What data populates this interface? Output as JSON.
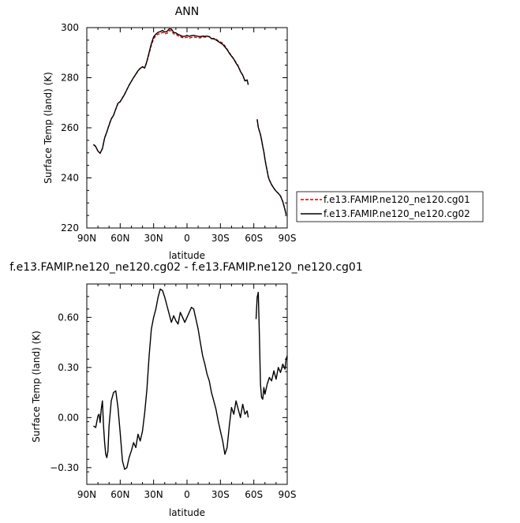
{
  "chart_data": [
    {
      "type": "line",
      "title": "ANN",
      "xlabel": "latitude",
      "ylabel": "Surface Temp (land) (K)",
      "xlim": [
        90,
        -90
      ],
      "ylim": [
        220,
        300
      ],
      "x_ticks": [
        {
          "value": 90,
          "label": "90N"
        },
        {
          "value": 60,
          "label": "60N"
        },
        {
          "value": 30,
          "label": "30N"
        },
        {
          "value": 0,
          "label": "0"
        },
        {
          "value": -30,
          "label": "30S"
        },
        {
          "value": -60,
          "label": "60S"
        },
        {
          "value": -90,
          "label": "90S"
        }
      ],
      "y_ticks": [
        {
          "value": 220,
          "label": "220"
        },
        {
          "value": 240,
          "label": "240"
        },
        {
          "value": 260,
          "label": "260"
        },
        {
          "value": 280,
          "label": "280"
        },
        {
          "value": 300,
          "label": "300"
        }
      ],
      "legend": {
        "position": "right"
      },
      "series": [
        {
          "name": "f.e13.FAMIP.ne120_ne120.cg01",
          "color": "#cc0000",
          "dash": "dashed",
          "segments": [
            {
              "x": [
                84,
                82,
                80,
                78,
                76,
                74,
                72,
                70,
                68,
                66,
                64,
                62,
                60,
                56,
                52,
                48,
                44,
                42,
                40,
                38,
                36,
                34,
                32,
                30,
                28,
                26,
                24,
                22,
                20,
                18,
                16,
                14,
                12,
                10,
                8,
                6,
                4,
                2,
                0,
                -2,
                -4,
                -6,
                -8,
                -10,
                -12,
                -14,
                -16,
                -18,
                -20,
                -22,
                -24,
                -26,
                -28,
                -30,
                -32,
                -34,
                -36,
                -38,
                -40,
                -42,
                -44,
                -46,
                -48,
                -50,
                -52,
                -54,
                -55
              ],
              "y": [
                253.4,
                252.6,
                250.6,
                249.8,
                251.8,
                256.1,
                258.3,
                261.3,
                263.6,
                265.1,
                267.4,
                269.7,
                270.5,
                273.5,
                277.1,
                280.0,
                282.6,
                283.8,
                284.2,
                283.9,
                286.4,
                289.7,
                292.9,
                295.6,
                296.7,
                297.4,
                297.6,
                298.1,
                297.5,
                297.7,
                298.8,
                298.7,
                297.5,
                297.4,
                296.7,
                296.3,
                296.0,
                295.9,
                296.2,
                295.8,
                296.1,
                296.3,
                296.1,
                296.0,
                295.9,
                296.3,
                296.2,
                296.4,
                296.4,
                295.6,
                295.7,
                295.5,
                294.7,
                294.3,
                293.8,
                292.7,
                291.4,
                290.0,
                288.8,
                287.5,
                286.1,
                284.7,
                282.6,
                281.0,
                278.8,
                279.1,
                277.2
              ]
            },
            {
              "x": [
                -63,
                -64,
                -65,
                -66,
                -67,
                -68,
                -69,
                -70,
                -71,
                -72,
                -73,
                -74,
                -76,
                -78,
                -80,
                -82,
                -84,
                -86,
                -88,
                -89
              ],
              "y": [
                263.3,
                260.2,
                258.8,
                257.2,
                255.1,
                252.6,
                250.3,
                247.4,
                244.9,
                242.9,
                240.4,
                239.2,
                237.3,
                235.9,
                234.6,
                233.9,
                232.7,
                230.6,
                227.3,
                225.4
              ]
            }
          ]
        },
        {
          "name": "f.e13.FAMIP.ne120_ne120.cg02",
          "color": "#000000",
          "dash": "solid",
          "segments": [
            {
              "x": [
                84,
                82,
                80,
                78,
                76,
                74,
                72,
                70,
                68,
                66,
                64,
                62,
                60,
                56,
                52,
                48,
                44,
                42,
                40,
                38,
                36,
                34,
                32,
                30,
                28,
                26,
                24,
                22,
                20,
                18,
                16,
                14,
                12,
                10,
                8,
                6,
                4,
                2,
                0,
                -2,
                -4,
                -6,
                -8,
                -10,
                -12,
                -14,
                -16,
                -18,
                -20,
                -22,
                -24,
                -26,
                -28,
                -30,
                -32,
                -34,
                -36,
                -38,
                -40,
                -42,
                -44,
                -46,
                -48,
                -50,
                -52,
                -54,
                -55
              ],
              "y": [
                253.3,
                252.5,
                250.7,
                249.9,
                251.7,
                255.9,
                258.4,
                261.0,
                263.5,
                265.0,
                267.5,
                269.8,
                270.4,
                273.4,
                277.0,
                280.1,
                282.8,
                283.7,
                284.4,
                283.9,
                286.6,
                290.1,
                293.6,
                296.3,
                297.4,
                298.1,
                298.4,
                298.9,
                298.2,
                298.5,
                299.5,
                299.4,
                298.1,
                297.9,
                297.3,
                296.9,
                296.5,
                296.5,
                296.9,
                296.5,
                296.8,
                296.9,
                296.7,
                296.5,
                296.4,
                296.6,
                296.5,
                296.6,
                296.4,
                295.6,
                295.5,
                295.1,
                294.5,
                293.9,
                293.3,
                292.3,
                291.2,
                289.8,
                288.6,
                287.4,
                285.8,
                284.5,
                282.5,
                281.0,
                278.7,
                279.1,
                277.2
              ]
            },
            {
              "x": [
                -63,
                -64,
                -65,
                -66,
                -67,
                -68,
                -69,
                -70,
                -71,
                -72,
                -73,
                -74,
                -76,
                -78,
                -80,
                -82,
                -84,
                -86,
                -88,
                -89
              ],
              "y": [
                263.4,
                260.3,
                258.7,
                257.3,
                255.2,
                252.5,
                250.4,
                247.5,
                245.0,
                242.8,
                240.5,
                239.1,
                237.3,
                235.8,
                234.7,
                233.8,
                232.8,
                230.5,
                227.2,
                225.4
              ]
            }
          ]
        }
      ]
    },
    {
      "type": "line",
      "title": "f.e13.FAMIP.ne120_ne120.cg02 - f.e13.FAMIP.ne120_ne120.cg01",
      "xlabel": "latitude",
      "ylabel": "Surface Temp (land) (K)",
      "xlim": [
        90,
        -90
      ],
      "ylim": [
        -0.4,
        0.8
      ],
      "x_ticks": [
        {
          "value": 90,
          "label": "90N"
        },
        {
          "value": 60,
          "label": "60N"
        },
        {
          "value": 30,
          "label": "30N"
        },
        {
          "value": 0,
          "label": "0"
        },
        {
          "value": -30,
          "label": "30S"
        },
        {
          "value": -60,
          "label": "60S"
        },
        {
          "value": -90,
          "label": "90S"
        }
      ],
      "y_ticks": [
        {
          "value": -0.3,
          "label": "−0.30"
        },
        {
          "value": 0.0,
          "label": "0.00"
        },
        {
          "value": 0.3,
          "label": "0.30"
        },
        {
          "value": 0.6,
          "label": "0.60"
        }
      ],
      "series": [
        {
          "color": "#000000",
          "dash": "solid",
          "segments": [
            {
              "x": [
                84,
                82,
                80,
                79,
                78,
                77,
                76,
                75,
                74,
                73,
                72,
                71,
                70,
                68,
                66,
                64,
                62,
                60,
                58,
                56,
                54,
                52,
                50,
                48,
                46,
                44,
                42,
                40,
                38,
                36,
                34,
                32,
                30,
                28,
                26,
                24,
                22,
                20,
                18,
                16,
                14,
                12,
                10,
                8,
                6,
                4,
                2,
                0,
                -2,
                -4,
                -6,
                -8,
                -10,
                -12,
                -14,
                -16,
                -18,
                -20,
                -22,
                -24,
                -26,
                -28,
                -30,
                -32,
                -34,
                -36,
                -38,
                -40,
                -42,
                -44,
                -46,
                -48,
                -50,
                -52,
                -54,
                -55
              ],
              "y": [
                -0.05,
                -0.06,
                0.01,
                0.02,
                -0.03,
                0.05,
                0.1,
                -0.05,
                -0.15,
                -0.22,
                -0.24,
                -0.2,
                -0.05,
                0.1,
                0.15,
                0.16,
                0.06,
                -0.09,
                -0.26,
                -0.31,
                -0.3,
                -0.24,
                -0.2,
                -0.15,
                -0.18,
                -0.1,
                -0.14,
                -0.08,
                0.03,
                0.17,
                0.37,
                0.53,
                0.6,
                0.65,
                0.72,
                0.77,
                0.76,
                0.72,
                0.67,
                0.62,
                0.57,
                0.61,
                0.58,
                0.56,
                0.63,
                0.6,
                0.57,
                0.6,
                0.63,
                0.66,
                0.65,
                0.59,
                0.53,
                0.45,
                0.37,
                0.32,
                0.26,
                0.22,
                0.15,
                0.1,
                0.05,
                -0.02,
                -0.08,
                -0.14,
                -0.22,
                -0.18,
                -0.05,
                0.06,
                0.02,
                0.1,
                0.05,
                0.0,
                0.08,
                0.02,
                0.04,
                0.0
              ]
            },
            {
              "x": [
                -62,
                -63,
                -64,
                -65,
                -66,
                -67,
                -68,
                -69,
                -70,
                -72,
                -74,
                -76,
                -78,
                -80,
                -82,
                -84,
                -86,
                -88,
                -89,
                -90
              ],
              "y": [
                0.59,
                0.72,
                0.75,
                0.5,
                0.2,
                0.12,
                0.11,
                0.18,
                0.14,
                0.2,
                0.24,
                0.22,
                0.28,
                0.23,
                0.3,
                0.27,
                0.32,
                0.29,
                0.35,
                0.37
              ]
            }
          ]
        }
      ]
    }
  ]
}
